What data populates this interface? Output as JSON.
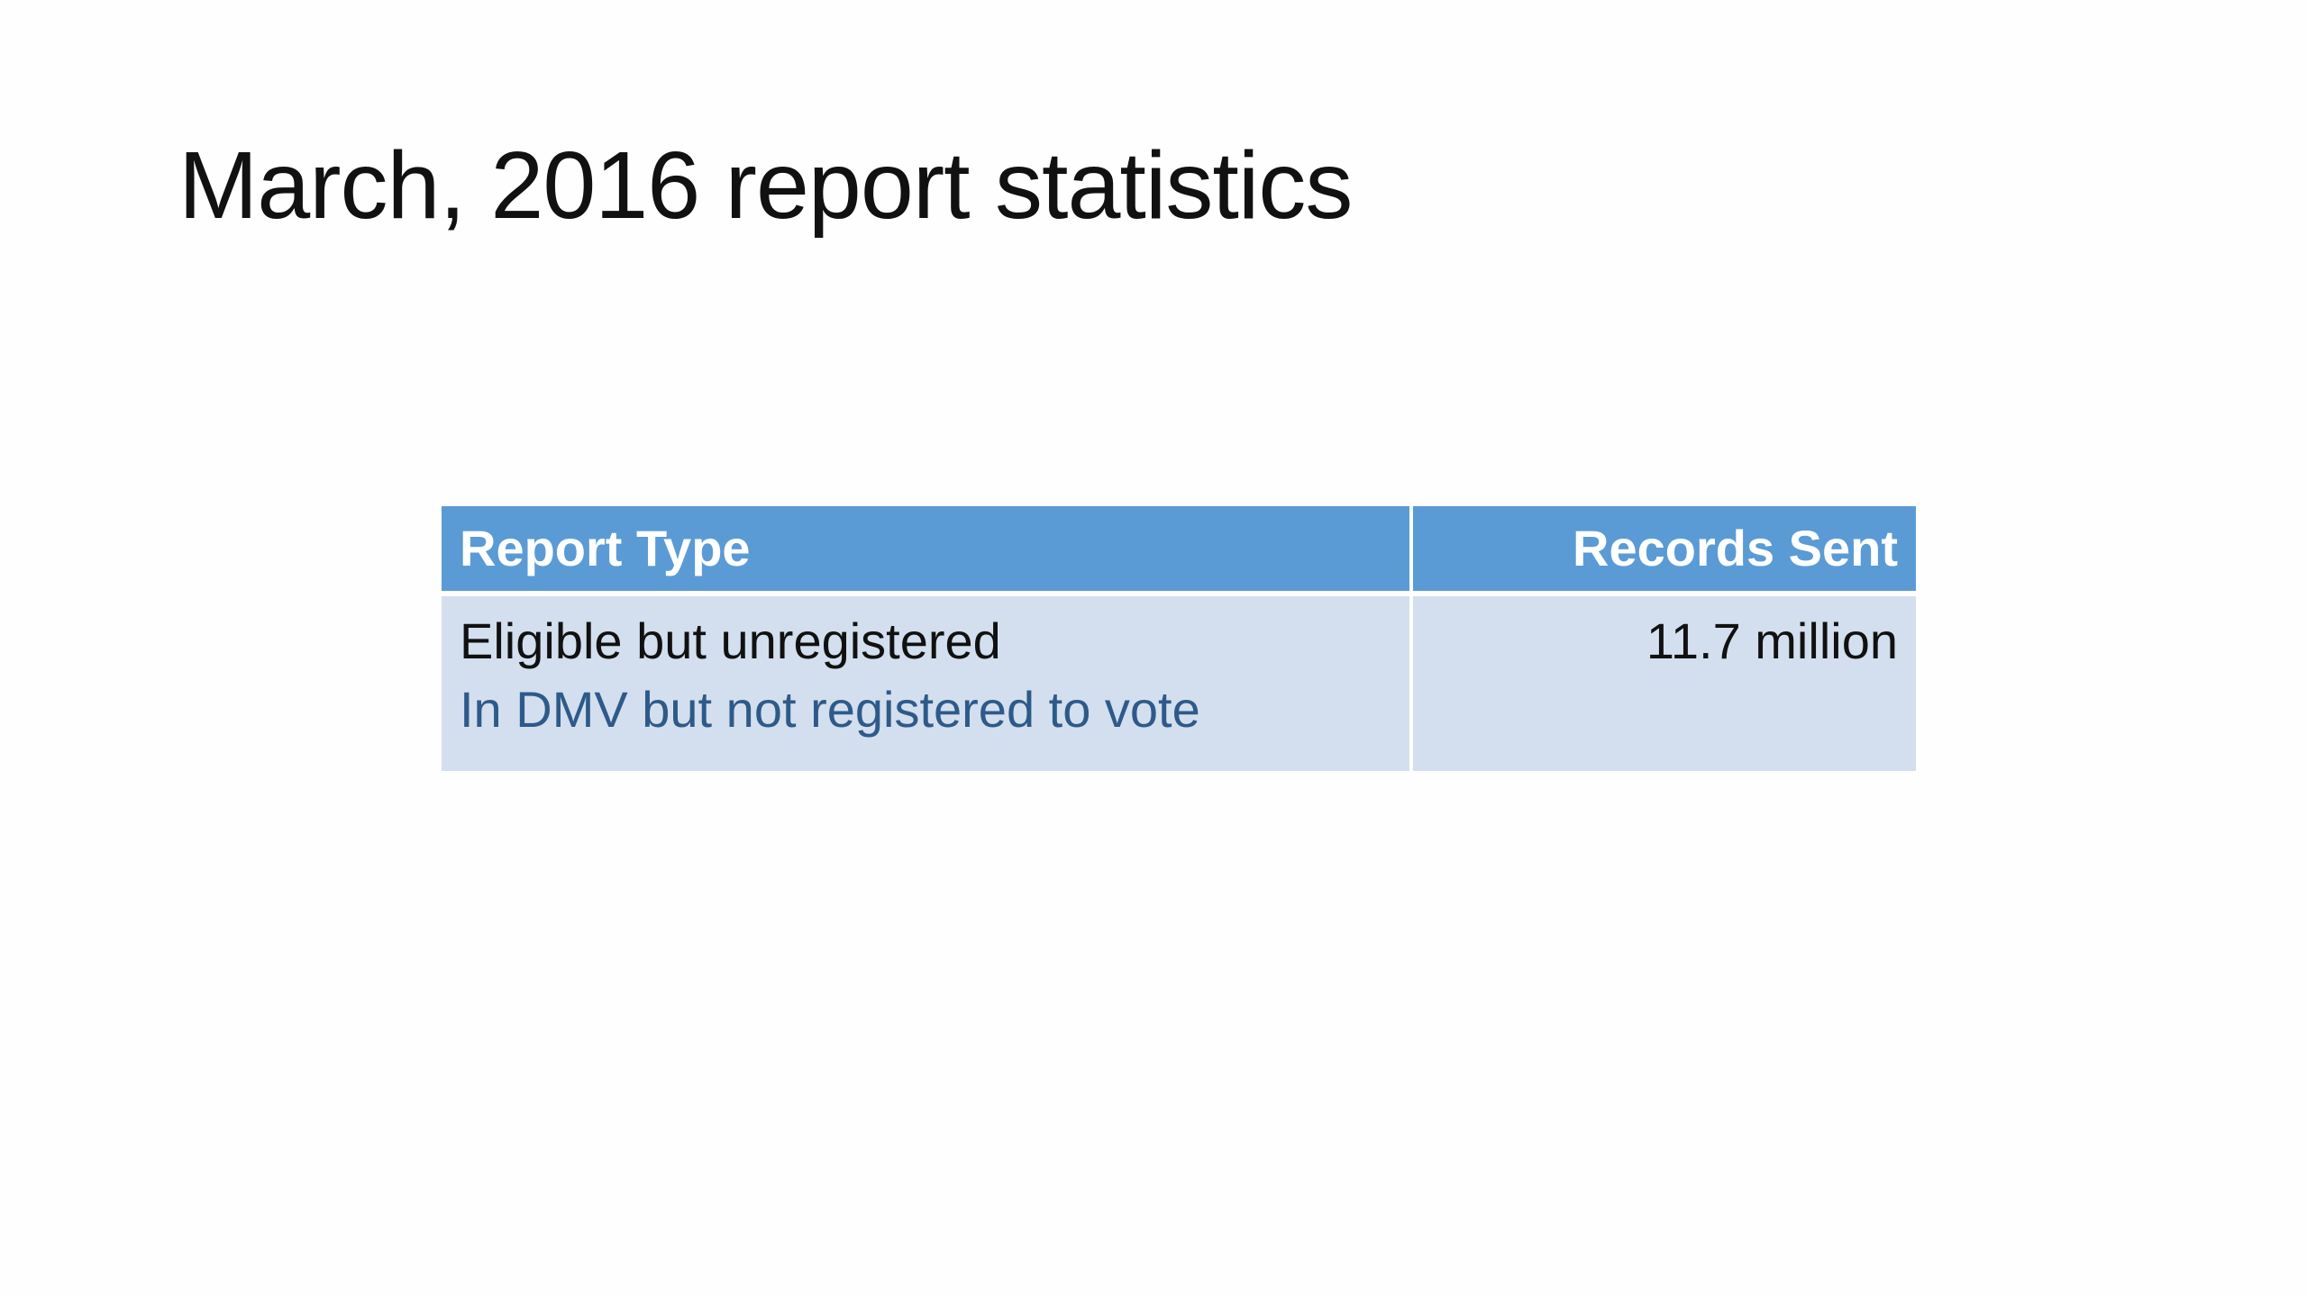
{
  "slide": {
    "title": "March, 2016 report statistics"
  },
  "table": {
    "headers": {
      "report_type": "Report Type",
      "records_sent": "Records Sent"
    },
    "rows": [
      {
        "report_type": "Eligible but unregistered",
        "description": "In DMV but not registered to vote",
        "records_sent": "11.7 million"
      }
    ]
  },
  "colors": {
    "header_background": "#5b9bd5",
    "row_background": "#d3dfee",
    "description_text": "#2e5a8a"
  }
}
